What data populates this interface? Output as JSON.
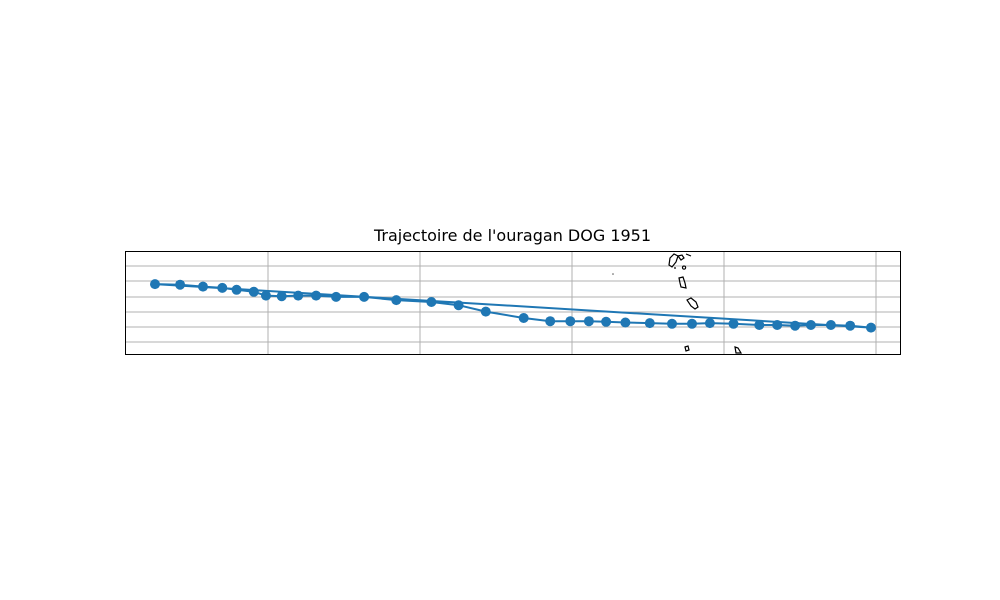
{
  "title": "Trajectoire de l'ouragan DOG 1951",
  "map": {
    "track_color": "#1f77b4",
    "coast_color": "#000000",
    "grid_color": "#b0b0b0",
    "gridlines": true,
    "axis_tick_labels_visible": false
  },
  "chart_data": {
    "type": "scatter",
    "title": "Trajectoire de l'ouragan DOG 1951",
    "xlabel": "",
    "ylabel": "",
    "note": "Storm track points connected by a line; longitude/latitude ticks are not printed.",
    "series": [
      {
        "values_note": "relative track positions along the path (west to east progression)",
        "x": [
          0.0,
          0.035,
          0.067,
          0.094,
          0.114,
          0.138,
          0.155,
          0.177,
          0.2,
          0.225,
          0.253,
          0.292,
          0.337,
          0.386,
          0.424,
          0.462,
          0.515,
          0.552,
          0.58,
          0.606,
          0.63,
          0.657,
          0.691,
          0.722,
          0.75,
          0.775,
          0.808,
          0.844,
          0.869,
          0.894,
          0.916,
          0.944,
          0.971,
          1.0
        ],
        "y": [
          0.78,
          0.77,
          0.74,
          0.72,
          0.69,
          0.66,
          0.6,
          0.59,
          0.6,
          0.6,
          0.58,
          0.58,
          0.53,
          0.5,
          0.45,
          0.35,
          0.25,
          0.2,
          0.2,
          0.2,
          0.19,
          0.18,
          0.17,
          0.16,
          0.16,
          0.17,
          0.16,
          0.14,
          0.14,
          0.13,
          0.14,
          0.14,
          0.13,
          0.1
        ]
      }
    ]
  }
}
